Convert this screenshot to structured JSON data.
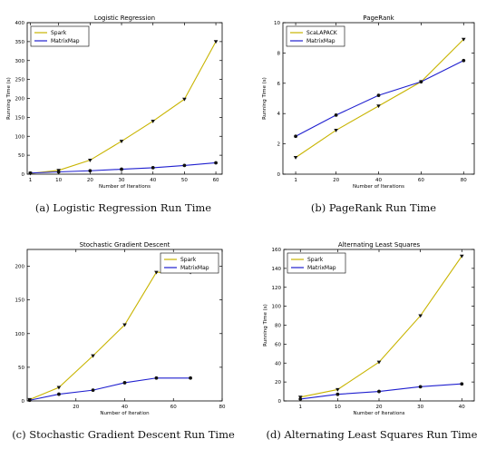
{
  "colors": {
    "yellow": "#c8b400",
    "blue": "#1f1fcf"
  },
  "chart_data": [
    {
      "type": "line",
      "title": "Logistic Regression",
      "xlabel": "Number of Iterations",
      "ylabel": "Running Time (s)",
      "xlim": [
        0,
        62
      ],
      "ylim": [
        0,
        400
      ],
      "xticks": [
        1,
        10,
        20,
        30,
        40,
        50,
        60
      ],
      "yticks": [
        0,
        50,
        100,
        150,
        200,
        250,
        300,
        350,
        400
      ],
      "legend": "top-left",
      "series": [
        {
          "name": "Spark",
          "color": "yellow",
          "marker": "triangle",
          "x": [
            1,
            10,
            20,
            30,
            40,
            50,
            60
          ],
          "y": [
            2,
            10,
            37,
            87,
            140,
            198,
            350
          ]
        },
        {
          "name": "MatrixMap",
          "color": "blue",
          "marker": "circle",
          "x": [
            1,
            10,
            20,
            30,
            40,
            50,
            60
          ],
          "y": [
            3,
            6,
            9,
            13,
            17,
            23,
            30
          ]
        }
      ],
      "caption": "(a) Logistic Regression Run Time"
    },
    {
      "type": "line",
      "title": "PageRank",
      "xlabel": "Number of Iterations",
      "ylabel": "Running Time (s)",
      "xlim": [
        -5,
        85
      ],
      "ylim": [
        0,
        10
      ],
      "xticks": [
        1,
        20,
        40,
        60,
        80
      ],
      "yticks": [
        0,
        2,
        4,
        6,
        8,
        10
      ],
      "legend": "top-left",
      "series": [
        {
          "name": "ScaLAPACK",
          "color": "yellow",
          "marker": "triangle",
          "x": [
            1,
            20,
            40,
            60,
            80
          ],
          "y": [
            1.1,
            2.9,
            4.5,
            6.1,
            8.9
          ]
        },
        {
          "name": "MatrixMap",
          "color": "blue",
          "marker": "circle",
          "x": [
            1,
            20,
            40,
            60,
            80
          ],
          "y": [
            2.5,
            3.9,
            5.2,
            6.1,
            7.5
          ]
        }
      ],
      "caption": "(b) PageRank Run Time"
    },
    {
      "type": "line",
      "title": "Stochastic Gradient Descent",
      "xlabel": "Number of Iteration",
      "ylabel": "",
      "xlim": [
        0,
        80
      ],
      "ylim": [
        0,
        225
      ],
      "xticks": [
        20,
        40,
        60,
        80
      ],
      "yticks": [
        0,
        50,
        100,
        150,
        200
      ],
      "legend": "top-right",
      "series": [
        {
          "name": "Spark",
          "color": "yellow",
          "marker": "triangle",
          "x": [
            1,
            13,
            27,
            40,
            53,
            67
          ],
          "y": [
            2,
            20,
            67,
            113,
            191,
            191
          ]
        },
        {
          "name": "MatrixMap",
          "color": "blue",
          "marker": "circle",
          "x": [
            1,
            13,
            27,
            40,
            53,
            67
          ],
          "y": [
            1,
            10,
            16,
            27,
            34,
            34
          ]
        }
      ],
      "caption": "(c) Stochastic Gradient Descent Run Time"
    },
    {
      "type": "line",
      "title": "Alternating Least Squares",
      "xlabel": "Number of Iterations",
      "ylabel": "Running Time (s)",
      "xlim": [
        -3,
        43
      ],
      "ylim": [
        0,
        160
      ],
      "xticks": [
        1,
        10,
        20,
        30,
        40
      ],
      "yticks": [
        0,
        20,
        40,
        60,
        80,
        100,
        120,
        140,
        160
      ],
      "legend": "top-left",
      "series": [
        {
          "name": "Spark",
          "color": "yellow",
          "marker": "triangle",
          "x": [
            1,
            10,
            20,
            30,
            40
          ],
          "y": [
            4,
            12,
            41,
            90,
            153
          ]
        },
        {
          "name": "MatrixMap",
          "color": "blue",
          "marker": "circle",
          "x": [
            1,
            10,
            20,
            30,
            40
          ],
          "y": [
            2,
            7,
            10,
            15,
            18
          ]
        }
      ],
      "caption": "(d) Alternating Least Squares Run Time"
    }
  ]
}
